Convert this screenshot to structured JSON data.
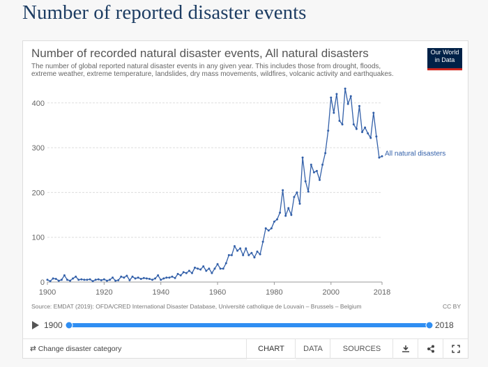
{
  "page_title": "Number of reported disaster events",
  "chart_data": {
    "type": "line",
    "title": "Number of recorded natural disaster events, All natural disasters",
    "subtitle": "The number of global reported natural disaster events in any given year. This includes those from drought, floods, extreme weather, extreme temperature, landslides, dry mass movements, wildfires, volcanic activity and earthquakes.",
    "logo": [
      "Our World",
      "in Data"
    ],
    "source": "Source: EMDAT (2019): OFDA/CRED International Disaster Database, Université catholique de Louvain – Brussels – Belgium",
    "license": "CC BY",
    "x": [
      1900,
      1901,
      1902,
      1903,
      1904,
      1905,
      1906,
      1907,
      1908,
      1909,
      1910,
      1911,
      1912,
      1913,
      1914,
      1915,
      1916,
      1917,
      1918,
      1919,
      1920,
      1921,
      1922,
      1923,
      1924,
      1925,
      1926,
      1927,
      1928,
      1929,
      1930,
      1931,
      1932,
      1933,
      1934,
      1935,
      1936,
      1937,
      1938,
      1939,
      1940,
      1941,
      1942,
      1943,
      1944,
      1945,
      1946,
      1947,
      1948,
      1949,
      1950,
      1951,
      1952,
      1953,
      1954,
      1955,
      1956,
      1957,
      1958,
      1959,
      1960,
      1961,
      1962,
      1963,
      1964,
      1965,
      1966,
      1967,
      1968,
      1969,
      1970,
      1971,
      1972,
      1973,
      1974,
      1975,
      1976,
      1977,
      1978,
      1979,
      1980,
      1981,
      1982,
      1983,
      1984,
      1985,
      1986,
      1987,
      1988,
      1989,
      1990,
      1991,
      1992,
      1993,
      1994,
      1995,
      1996,
      1997,
      1998,
      1999,
      2000,
      2001,
      2002,
      2003,
      2004,
      2005,
      2006,
      2007,
      2008,
      2009,
      2010,
      2011,
      2012,
      2013,
      2014,
      2015,
      2016,
      2017,
      2018
    ],
    "series": [
      {
        "name": "All natural disasters",
        "color": "#3360a9",
        "values": [
          5,
          2,
          8,
          7,
          3,
          5,
          15,
          5,
          3,
          8,
          12,
          5,
          6,
          5,
          5,
          6,
          2,
          5,
          6,
          4,
          6,
          3,
          5,
          10,
          3,
          4,
          12,
          10,
          14,
          4,
          12,
          8,
          10,
          7,
          9,
          8,
          7,
          5,
          8,
          15,
          5,
          8,
          10,
          10,
          12,
          9,
          18,
          15,
          22,
          20,
          25,
          20,
          32,
          30,
          28,
          35,
          25,
          30,
          20,
          30,
          40,
          30,
          30,
          42,
          60,
          60,
          80,
          70,
          75,
          60,
          75,
          60,
          65,
          55,
          68,
          62,
          90,
          120,
          115,
          120,
          135,
          140,
          155,
          205,
          148,
          165,
          150,
          190,
          200,
          175,
          278,
          225,
          202,
          262,
          245,
          248,
          228,
          262,
          288,
          338,
          412,
          378,
          420,
          360,
          352,
          432,
          398,
          415,
          352,
          342,
          393,
          335,
          345,
          332,
          322,
          378,
          325,
          278,
          281
        ]
      }
    ],
    "xlim": [
      1900,
      2018
    ],
    "ylim": [
      0,
      450
    ],
    "xticks": [
      1900,
      1920,
      1940,
      1960,
      1980,
      2000,
      2018
    ],
    "yticks": [
      0,
      100,
      200,
      300,
      400
    ],
    "grid": true
  },
  "controls": {
    "change_category": "Change disaster category",
    "tabs": [
      "CHART",
      "DATA",
      "SOURCES"
    ]
  }
}
